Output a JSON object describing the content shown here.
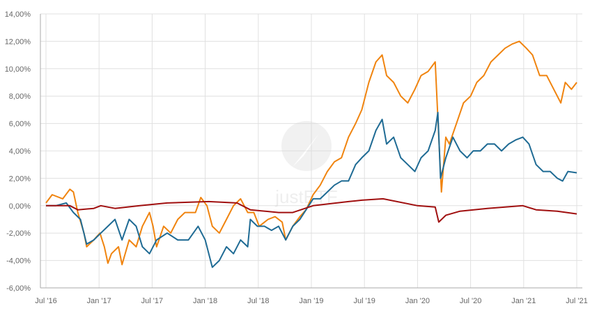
{
  "watermark": "justETF",
  "chart_data": {
    "type": "line",
    "title": "",
    "xlabel": "",
    "ylabel": "",
    "x_unit": "months since Jul 2016",
    "xlim": [
      0,
      60
    ],
    "ylim": [
      -6,
      14
    ],
    "grid": true,
    "x_ticks": [
      {
        "m": 0,
        "label": "Jul '16"
      },
      {
        "m": 6,
        "label": "Jan '17"
      },
      {
        "m": 12,
        "label": "Jul '17"
      },
      {
        "m": 18,
        "label": "Jan '18"
      },
      {
        "m": 24,
        "label": "Jul '18"
      },
      {
        "m": 30,
        "label": "Jan '19"
      },
      {
        "m": 36,
        "label": "Jul '19"
      },
      {
        "m": 42,
        "label": "Jan '20"
      },
      {
        "m": 48,
        "label": "Jul '20"
      },
      {
        "m": 54,
        "label": "Jan '21"
      },
      {
        "m": 60,
        "label": "Jul '21"
      }
    ],
    "y_ticks": [
      {
        "v": 14,
        "label": "14,00%"
      },
      {
        "v": 12,
        "label": "12,00%"
      },
      {
        "v": 10,
        "label": "10,00%"
      },
      {
        "v": 8,
        "label": "8,00%"
      },
      {
        "v": 6,
        "label": "6,00%"
      },
      {
        "v": 4,
        "label": "4,00%"
      },
      {
        "v": 2,
        "label": "2,00%"
      },
      {
        "v": 0,
        "label": "0,00%"
      },
      {
        "v": -2,
        "label": "-2,00%"
      },
      {
        "v": -4,
        "label": "-4,00%"
      },
      {
        "v": -6,
        "label": "-6,00%"
      }
    ],
    "series": [
      {
        "name": "orange",
        "color": "#f0840f",
        "points": [
          [
            0,
            0.2
          ],
          [
            0.7,
            0.8
          ],
          [
            1.9,
            0.5
          ],
          [
            2.7,
            1.2
          ],
          [
            3.1,
            1.0
          ],
          [
            3.6,
            -0.5
          ],
          [
            4.3,
            -2.0
          ],
          [
            4.6,
            -3.0
          ],
          [
            5.4,
            -2.5
          ],
          [
            6.1,
            -2.0
          ],
          [
            6.6,
            -3.0
          ],
          [
            7.0,
            -4.2
          ],
          [
            7.4,
            -3.5
          ],
          [
            8.2,
            -3.0
          ],
          [
            8.6,
            -4.3
          ],
          [
            9.4,
            -2.5
          ],
          [
            10.2,
            -3.0
          ],
          [
            10.9,
            -1.5
          ],
          [
            11.7,
            -0.5
          ],
          [
            12.1,
            -1.5
          ],
          [
            12.5,
            -3.0
          ],
          [
            13.3,
            -1.5
          ],
          [
            14.1,
            -2.0
          ],
          [
            14.9,
            -1.0
          ],
          [
            15.7,
            -0.5
          ],
          [
            16.9,
            -0.5
          ],
          [
            17.5,
            0.6
          ],
          [
            18.2,
            0.0
          ],
          [
            18.8,
            -1.5
          ],
          [
            19.6,
            -2.0
          ],
          [
            20.4,
            -1.0
          ],
          [
            21.2,
            0.0
          ],
          [
            22.0,
            0.5
          ],
          [
            22.8,
            -0.5
          ],
          [
            23.5,
            -0.5
          ],
          [
            24.1,
            -1.5
          ],
          [
            25.1,
            -1.0
          ],
          [
            25.9,
            -0.8
          ],
          [
            26.7,
            -1.2
          ],
          [
            27.1,
            -2.5
          ],
          [
            27.9,
            -1.5
          ],
          [
            28.7,
            -0.8
          ],
          [
            29.4,
            -0.3
          ],
          [
            30.2,
            0.8
          ],
          [
            31.0,
            1.5
          ],
          [
            31.8,
            2.5
          ],
          [
            32.6,
            3.2
          ],
          [
            33.4,
            3.5
          ],
          [
            34.2,
            5.0
          ],
          [
            35.0,
            6.0
          ],
          [
            35.7,
            7.0
          ],
          [
            36.5,
            9.0
          ],
          [
            37.3,
            10.5
          ],
          [
            38.0,
            11.0
          ],
          [
            38.5,
            9.5
          ],
          [
            39.3,
            9.0
          ],
          [
            40.1,
            8.0
          ],
          [
            40.9,
            7.5
          ],
          [
            41.7,
            8.5
          ],
          [
            42.4,
            9.5
          ],
          [
            43.2,
            9.8
          ],
          [
            44.0,
            10.5
          ],
          [
            44.4,
            5.0
          ],
          [
            44.7,
            1.0
          ],
          [
            45.2,
            5.0
          ],
          [
            45.6,
            4.5
          ],
          [
            46.4,
            6.0
          ],
          [
            47.2,
            7.5
          ],
          [
            48.0,
            8.0
          ],
          [
            48.7,
            9.0
          ],
          [
            49.5,
            9.5
          ],
          [
            50.3,
            10.5
          ],
          [
            51.1,
            11.0
          ],
          [
            51.9,
            11.5
          ],
          [
            52.7,
            11.8
          ],
          [
            53.5,
            12.0
          ],
          [
            54.3,
            11.5
          ],
          [
            55.0,
            11.0
          ],
          [
            55.8,
            9.5
          ],
          [
            56.6,
            9.5
          ],
          [
            57.4,
            8.5
          ],
          [
            58.2,
            7.5
          ],
          [
            58.7,
            9.0
          ],
          [
            59.4,
            8.5
          ],
          [
            60.0,
            9.0
          ]
        ]
      },
      {
        "name": "blue",
        "color": "#1f6b94",
        "points": [
          [
            0,
            0
          ],
          [
            1.1,
            0
          ],
          [
            2.3,
            0.2
          ],
          [
            3.1,
            -0.5
          ],
          [
            3.9,
            -1.0
          ],
          [
            4.6,
            -2.8
          ],
          [
            5.4,
            -2.5
          ],
          [
            6.2,
            -2.0
          ],
          [
            7.0,
            -1.5
          ],
          [
            7.8,
            -1.0
          ],
          [
            8.6,
            -2.5
          ],
          [
            9.4,
            -1.0
          ],
          [
            10.2,
            -1.5
          ],
          [
            10.9,
            -3.0
          ],
          [
            11.7,
            -3.5
          ],
          [
            12.5,
            -2.5
          ],
          [
            13.7,
            -2.0
          ],
          [
            14.9,
            -2.5
          ],
          [
            16.1,
            -2.5
          ],
          [
            17.2,
            -1.5
          ],
          [
            18.0,
            -2.5
          ],
          [
            18.8,
            -4.5
          ],
          [
            19.6,
            -4.0
          ],
          [
            20.4,
            -3.0
          ],
          [
            21.2,
            -3.5
          ],
          [
            22.0,
            -2.5
          ],
          [
            22.8,
            -3.0
          ],
          [
            23.1,
            -1.0
          ],
          [
            23.9,
            -1.5
          ],
          [
            24.7,
            -1.5
          ],
          [
            25.5,
            -1.8
          ],
          [
            26.3,
            -1.5
          ],
          [
            27.1,
            -2.5
          ],
          [
            27.9,
            -1.5
          ],
          [
            28.7,
            -1.0
          ],
          [
            29.4,
            -0.3
          ],
          [
            30.2,
            0.5
          ],
          [
            31.0,
            0.5
          ],
          [
            31.8,
            1.0
          ],
          [
            32.6,
            1.5
          ],
          [
            33.4,
            1.8
          ],
          [
            34.2,
            1.8
          ],
          [
            35.0,
            3.0
          ],
          [
            35.7,
            3.5
          ],
          [
            36.5,
            4.0
          ],
          [
            37.3,
            5.5
          ],
          [
            38.0,
            6.3
          ],
          [
            38.5,
            4.5
          ],
          [
            39.3,
            5.0
          ],
          [
            40.1,
            3.5
          ],
          [
            40.9,
            3.0
          ],
          [
            41.7,
            2.5
          ],
          [
            42.4,
            3.5
          ],
          [
            43.2,
            4.0
          ],
          [
            44.0,
            5.5
          ],
          [
            44.3,
            6.8
          ],
          [
            44.6,
            2.0
          ],
          [
            45.2,
            3.5
          ],
          [
            46.0,
            5.0
          ],
          [
            46.8,
            4.0
          ],
          [
            47.6,
            3.5
          ],
          [
            48.3,
            4.0
          ],
          [
            49.1,
            4.0
          ],
          [
            49.9,
            4.5
          ],
          [
            50.7,
            4.5
          ],
          [
            51.5,
            4.0
          ],
          [
            52.3,
            4.5
          ],
          [
            53.1,
            4.8
          ],
          [
            53.9,
            5.0
          ],
          [
            54.6,
            4.5
          ],
          [
            55.4,
            3.0
          ],
          [
            56.2,
            2.5
          ],
          [
            57.0,
            2.5
          ],
          [
            57.8,
            2.0
          ],
          [
            58.4,
            1.8
          ],
          [
            59.0,
            2.5
          ],
          [
            60.0,
            2.4
          ]
        ]
      },
      {
        "name": "dark-red",
        "color": "#a00f0f",
        "points": [
          [
            0,
            0
          ],
          [
            2.7,
            0
          ],
          [
            3.6,
            -0.3
          ],
          [
            5.4,
            -0.2
          ],
          [
            6.2,
            0.0
          ],
          [
            7.8,
            -0.2
          ],
          [
            10.6,
            0.0
          ],
          [
            13.7,
            0.2
          ],
          [
            18.4,
            0.3
          ],
          [
            21.6,
            0.2
          ],
          [
            23.1,
            -0.3
          ],
          [
            26.3,
            -0.5
          ],
          [
            27.9,
            -0.5
          ],
          [
            30.2,
            0.0
          ],
          [
            34.2,
            0.3
          ],
          [
            35.7,
            0.4
          ],
          [
            38.1,
            0.5
          ],
          [
            42.0,
            0.0
          ],
          [
            44.0,
            -0.1
          ],
          [
            44.4,
            -1.2
          ],
          [
            45.2,
            -0.7
          ],
          [
            46.8,
            -0.4
          ],
          [
            49.9,
            -0.2
          ],
          [
            53.9,
            0.0
          ],
          [
            55.4,
            -0.3
          ],
          [
            57.8,
            -0.4
          ],
          [
            60.0,
            -0.6
          ]
        ]
      }
    ]
  }
}
